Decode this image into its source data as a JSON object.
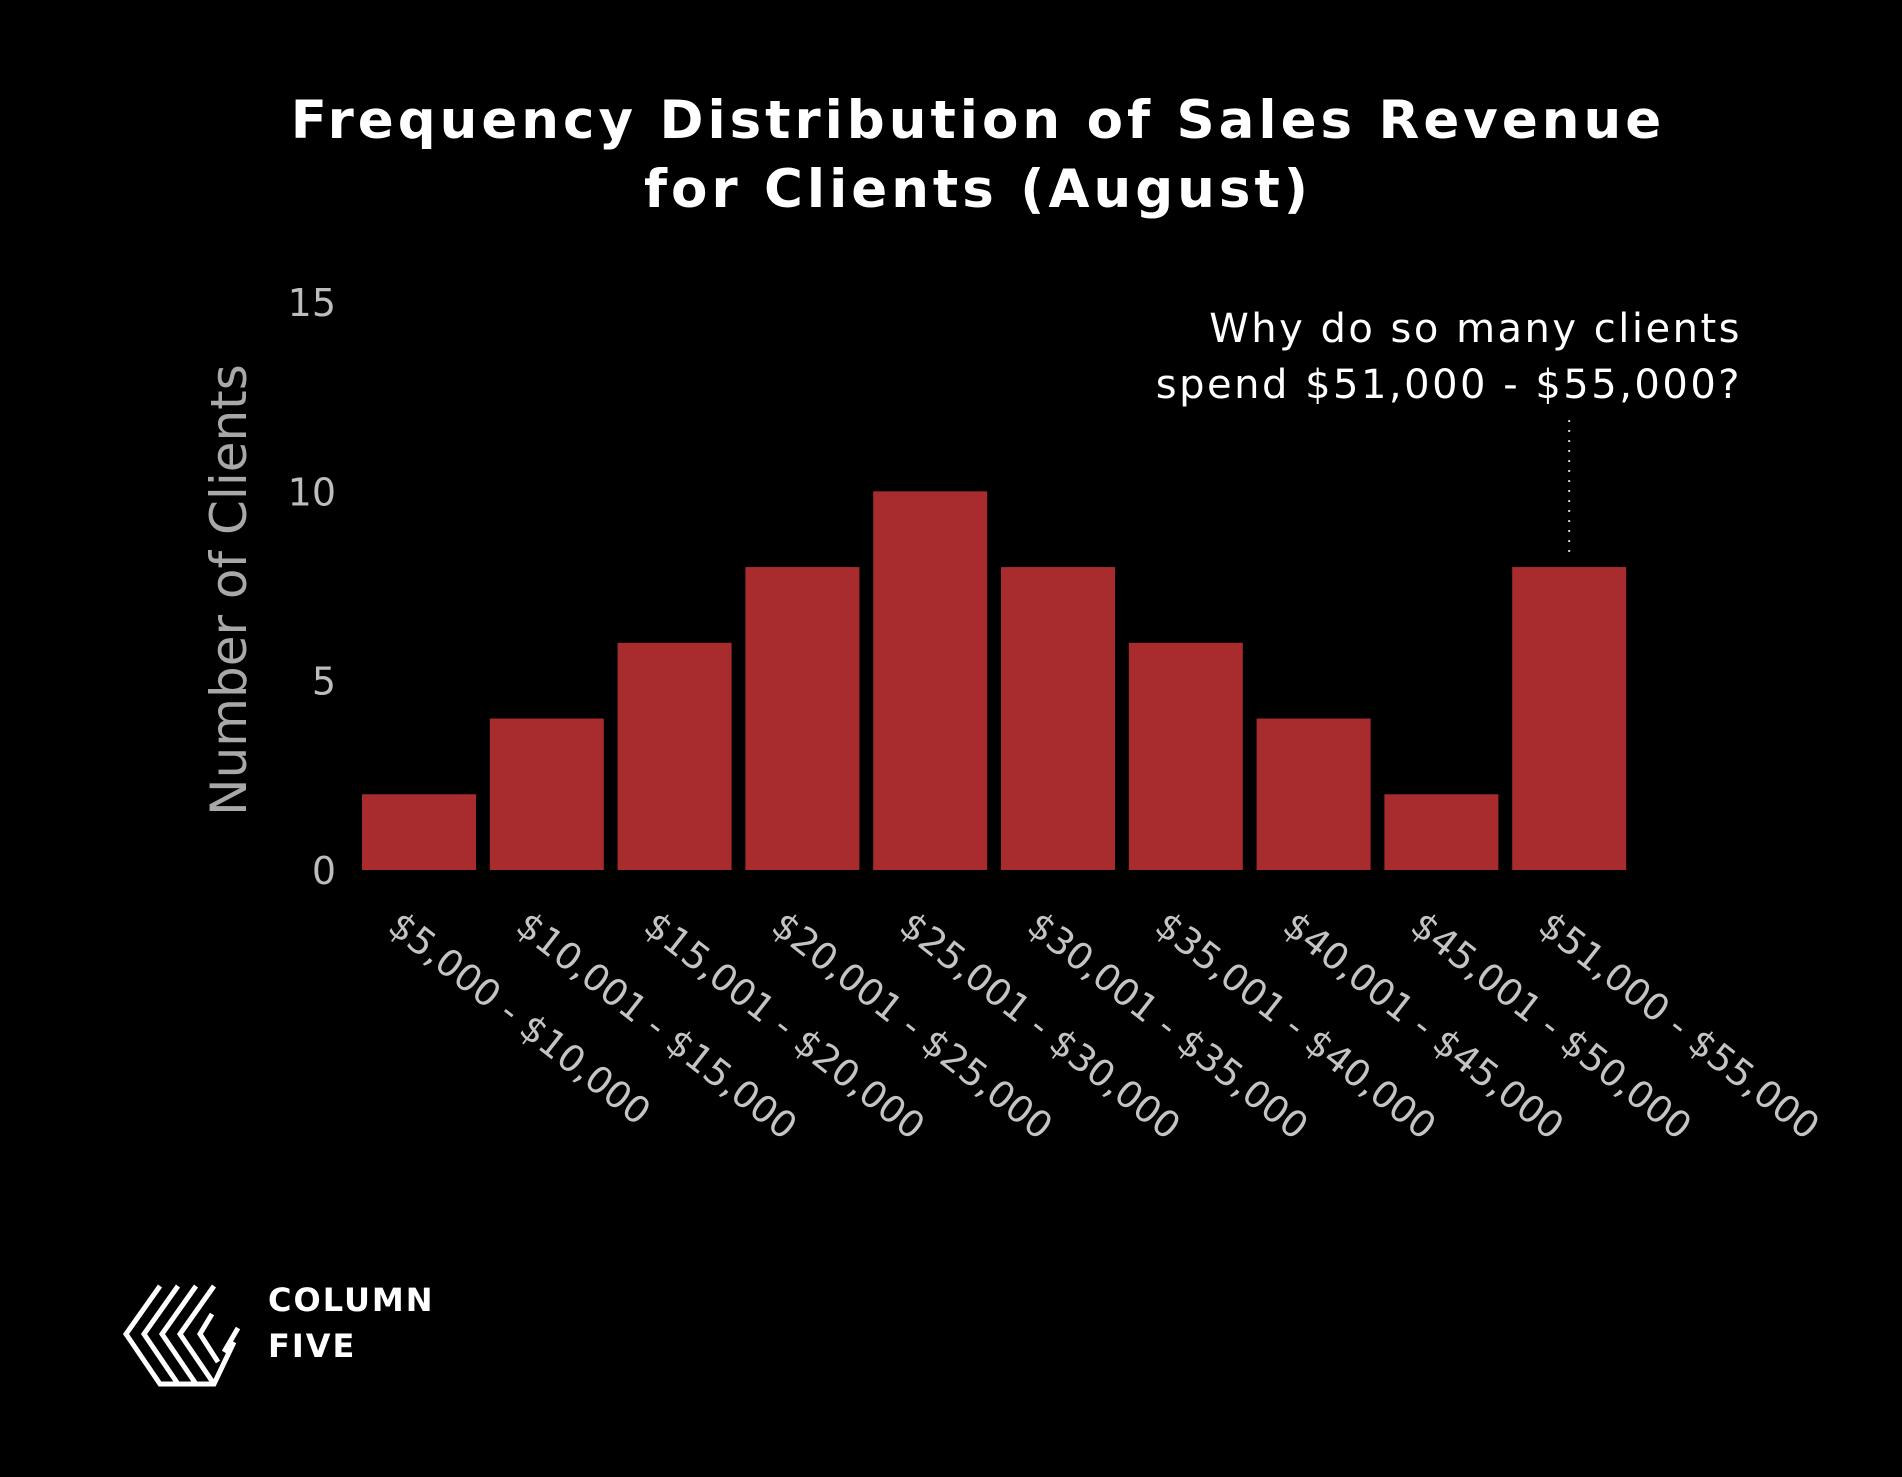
{
  "chart_data": {
    "type": "bar",
    "title": [
      "Frequency Distribution of Sales Revenue",
      "for Clients (August)"
    ],
    "xlabel": "",
    "ylabel": "Number of Clients",
    "ylim": [
      0,
      15
    ],
    "yticks": [
      "0",
      "5",
      "10",
      "15"
    ],
    "categories": [
      "$5,000 - $10,000",
      "$10,001 - $15,000",
      "$15,001 - $20,000",
      "$20,001 - $25,000",
      "$25,001 - $30,000",
      "$30,001 - $35,000",
      "$35,001 - $40,000",
      "$40,001 - $45,000",
      "$45,001 - $50,000",
      "$51,000 - $55,000"
    ],
    "values": [
      2,
      4,
      6,
      8,
      10,
      8,
      6,
      4,
      2,
      8
    ],
    "bar_color": "#a82c2e",
    "grid": false,
    "annotation": {
      "lines": [
        "Why do so many clients",
        "spend $51,000 - $55,000?"
      ],
      "target_category": "$51,000 - $55,000"
    }
  },
  "logo": {
    "name": "column-five-logo",
    "lines": [
      "COLUMN",
      "FIVE"
    ]
  }
}
